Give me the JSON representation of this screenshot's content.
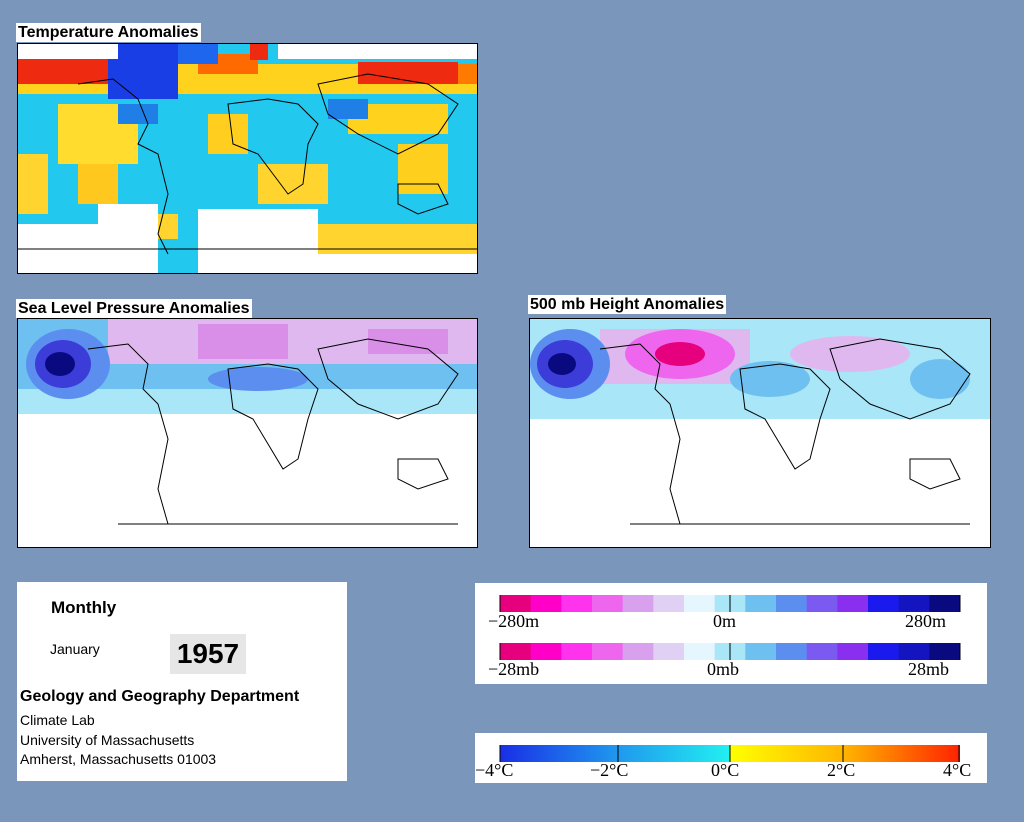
{
  "panels": {
    "temperature": {
      "title": "Temperature Anomalies"
    },
    "slp": {
      "title": "Sea Level Pressure Anomalies"
    },
    "height500": {
      "title": "500 mb Height Anomalies"
    }
  },
  "info": {
    "period": "Monthly",
    "month": "January",
    "year": "1957",
    "department": "Geology and Geography Department",
    "lab": "Climate Lab",
    "university": "University of Massachusetts",
    "address": "Amherst, Massachusetts 01003"
  },
  "legends": {
    "height": {
      "labels": [
        "−280m",
        "0m",
        "280m"
      ]
    },
    "pressure": {
      "labels": [
        "−28mb",
        "0mb",
        "28mb"
      ]
    },
    "temperature": {
      "labels": [
        "−4°C",
        "−2°C",
        "0°C",
        "2°C",
        "4°C"
      ]
    }
  },
  "colors": {
    "background": "#7a96bb",
    "anomaly_scale_cool_to_warm": [
      "#1a2ee6",
      "#1f7fe6",
      "#22c4ee",
      "#2ee6f0",
      "#ffff00",
      "#ffc800",
      "#ff8c00",
      "#ff3300"
    ],
    "pressure_height_scale": [
      "#e6007e",
      "#ff00c8",
      "#ff33ee",
      "#ee66ee",
      "#d9a0ee",
      "#e0d0f4",
      "#e6f6ff",
      "#a8e6f8",
      "#6ec0f0",
      "#5c8ef0",
      "#7a5af0",
      "#8a2ef0",
      "#1a1aee",
      "#1414c0",
      "#0a0a80"
    ]
  }
}
